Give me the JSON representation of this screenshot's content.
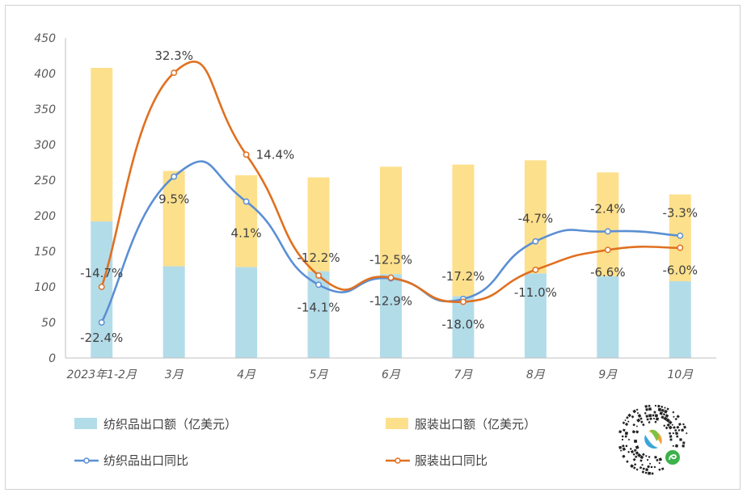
{
  "chart_data": {
    "type": "bar+line",
    "categories": [
      "2023年1-2月",
      "3月",
      "4月",
      "5月",
      "6月",
      "7月",
      "8月",
      "9月",
      "10月"
    ],
    "ylim": [
      0,
      450
    ],
    "yticks": [
      0,
      50,
      100,
      150,
      200,
      250,
      300,
      350,
      400,
      450
    ],
    "grid": false,
    "legend_position": "bottom",
    "bar_series": [
      {
        "name": "纺织品出口额（亿美元）",
        "color": "#b3dce9",
        "values": [
          192,
          129,
          128,
          122,
          118,
          87,
          119,
          115,
          108
        ]
      },
      {
        "name": "服装出口额（亿美元）",
        "color": "#fde08c",
        "values": [
          216,
          134,
          129,
          132,
          151,
          185,
          159,
          146,
          122
        ]
      }
    ],
    "line_series": [
      {
        "name": "纺织品出口同比",
        "color": "#5b8fd4",
        "values": [
          -22.4,
          9.5,
          4.1,
          -14.1,
          -12.9,
          -17.2,
          -4.7,
          -2.4,
          -3.3
        ],
        "labels": [
          "-22.4%",
          "9.5%",
          "4.1%",
          "-14.1%",
          "-12.9%",
          "-17.2%",
          "-4.7%",
          "-2.4%",
          "-3.3%"
        ],
        "plot_y": [
          50,
          255,
          220,
          103,
          112,
          83,
          164,
          178,
          172
        ],
        "label_dy": [
          19,
          28,
          39,
          28,
          28,
          -28,
          -28,
          -28,
          -28
        ]
      },
      {
        "name": "服装出口同比",
        "color": "#e07020",
        "values": [
          -14.7,
          32.3,
          14.4,
          -12.2,
          -12.5,
          -18.0,
          -11.0,
          -6.6,
          -6.0
        ],
        "labels": [
          "-14.7%",
          "32.3%",
          "14.4%",
          "-12.2%",
          "-12.5%",
          "-18.0%",
          "-11.0%",
          "-6.6%",
          "-6.0%"
        ],
        "plot_y": [
          100,
          401,
          286,
          116,
          113,
          79,
          124,
          152,
          155
        ],
        "label_dy": [
          -17,
          -21,
          0,
          -22,
          -22,
          28,
          28,
          28,
          28
        ]
      }
    ]
  },
  "legend": {
    "bar1": "纺织品出口额（亿美元）",
    "bar2": "服装出口额（亿美元）",
    "line1": "纺织品出口同比",
    "line2": "服装出口同比"
  },
  "qr_icon": "mini-program-qr-code"
}
